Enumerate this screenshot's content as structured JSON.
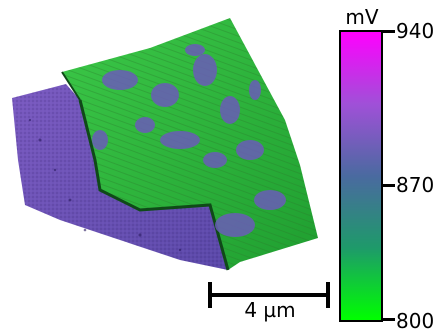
{
  "colorbar": {
    "unit": "mV",
    "min_label": "800",
    "mid_label": "870",
    "max_label": "940",
    "min_value": 800,
    "max_value": 940,
    "colors": [
      "#ff00ff",
      "#a050d8",
      "#4a6aa0",
      "#1e9a6a",
      "#00ff00"
    ]
  },
  "scalebar": {
    "label": "4 µm"
  },
  "surface": {
    "substrate_color": "#6b4fb0",
    "flake_color": "#2fbf3a"
  }
}
